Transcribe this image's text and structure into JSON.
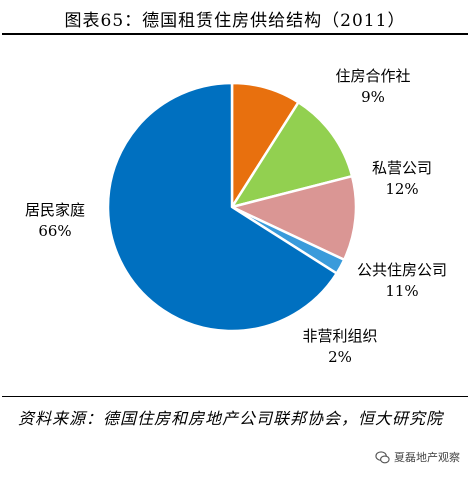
{
  "title": "图表65：德国租赁住房供给结构（2011）",
  "source": "资料来源：德国住房和房地产公司联邦协会，恒大研究院",
  "watermark": "夏磊地产观察",
  "chart_data": {
    "type": "pie",
    "title": "图表65：德国租赁住房供给结构（2011）",
    "start_angle_deg": 90,
    "direction": "counterclockwise",
    "slices": [
      {
        "label": "住房合作社",
        "value": 9,
        "pct_text": "9%",
        "color": "#E8700E"
      },
      {
        "label": "私营公司",
        "value": 12,
        "pct_text": "12%",
        "color": "#92D050"
      },
      {
        "label": "公共住房公司",
        "value": 11,
        "pct_text": "11%",
        "color": "#DA9694"
      },
      {
        "label": "非营利组织",
        "value": 2,
        "pct_text": "2%",
        "color": "#3A9BDB"
      },
      {
        "label": "居民家庭",
        "value": 66,
        "pct_text": "66%",
        "color": "#0070C0"
      }
    ]
  }
}
